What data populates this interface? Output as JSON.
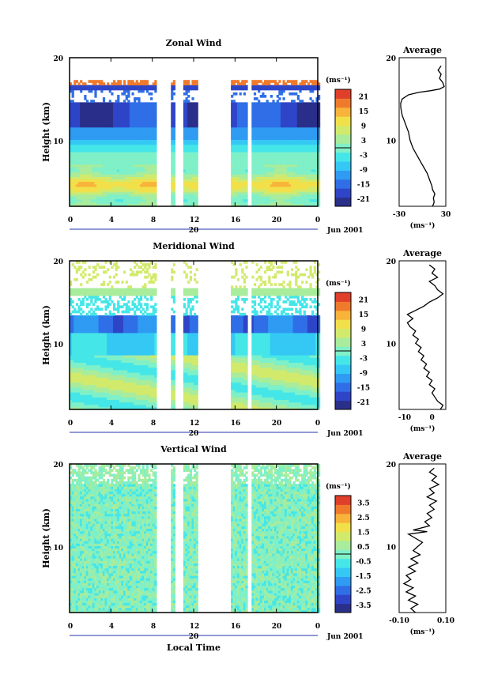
{
  "figure": {
    "xlabel": "Local Time",
    "date_label": "Jun 2001",
    "day_label": "20",
    "unit_label": "(ms⁻¹)",
    "average_title": "Average"
  },
  "chart_data": [
    {
      "type": "heatmap",
      "title": "Zonal Wind",
      "ylabel": "Height (km)",
      "x_ticks": [
        "0",
        "4",
        "8",
        "12",
        "16",
        "20",
        "0"
      ],
      "y_ticks": [
        "20",
        "10"
      ],
      "xlim": [
        0,
        24
      ],
      "ylim": [
        2,
        20
      ],
      "colorbar_ticks": [
        "21",
        "15",
        "9",
        "3",
        "-3",
        "-9",
        "-15",
        "-21"
      ],
      "colorbar_range": [
        -24,
        24
      ],
      "grid": false,
      "profile": {
        "title": "Average",
        "xlabel": "(ms⁻¹)",
        "x_ticks": [
          "-30",
          "30"
        ],
        "y_ticks": [
          "20",
          "10"
        ],
        "xlim": [
          -30,
          30
        ],
        "points": [
          [
            13,
            2
          ],
          [
            15,
            2.5
          ],
          [
            14,
            3
          ],
          [
            16,
            3.5
          ],
          [
            13,
            4
          ],
          [
            12,
            4.5
          ],
          [
            10,
            5
          ],
          [
            8,
            5.5
          ],
          [
            6,
            6
          ],
          [
            3,
            6.5
          ],
          [
            0,
            7
          ],
          [
            -3,
            7.5
          ],
          [
            -6,
            8
          ],
          [
            -9,
            8.5
          ],
          [
            -12,
            9
          ],
          [
            -14,
            9.5
          ],
          [
            -16,
            10
          ],
          [
            -17,
            10.5
          ],
          [
            -18,
            11
          ],
          [
            -20,
            11.5
          ],
          [
            -22,
            12
          ],
          [
            -24,
            12.5
          ],
          [
            -26,
            13
          ],
          [
            -27,
            13.5
          ],
          [
            -28,
            14
          ],
          [
            -28,
            14.5
          ],
          [
            -26,
            15
          ],
          [
            -18,
            15.5
          ],
          [
            -5,
            15.8
          ],
          [
            10,
            16
          ],
          [
            22,
            16.2
          ],
          [
            28,
            16.5
          ],
          [
            26,
            17
          ],
          [
            22,
            17.5
          ],
          [
            24,
            18
          ],
          [
            20,
            18.5
          ],
          [
            24,
            19
          ]
        ]
      }
    },
    {
      "type": "heatmap",
      "title": "Meridional Wind",
      "ylabel": "Height (km)",
      "x_ticks": [
        "0",
        "4",
        "8",
        "12",
        "16",
        "20",
        "0"
      ],
      "y_ticks": [
        "20",
        "10"
      ],
      "xlim": [
        0,
        24
      ],
      "ylim": [
        2,
        20
      ],
      "colorbar_ticks": [
        "21",
        "15",
        "9",
        "3",
        "-3",
        "-9",
        "-15",
        "-21"
      ],
      "colorbar_range": [
        -24,
        24
      ],
      "grid": false,
      "profile": {
        "title": "Average",
        "xlabel": "(ms⁻¹)",
        "x_ticks": [
          "-10",
          "0"
        ],
        "y_ticks": [
          "20",
          "10"
        ],
        "xlim": [
          -12,
          5
        ],
        "points": [
          [
            3,
            2
          ],
          [
            4,
            2.5
          ],
          [
            2,
            3
          ],
          [
            1,
            3.5
          ],
          [
            0,
            4
          ],
          [
            1,
            4.5
          ],
          [
            -1,
            5
          ],
          [
            0,
            5.5
          ],
          [
            -2,
            6
          ],
          [
            -1,
            6.5
          ],
          [
            -3,
            7
          ],
          [
            -2,
            7.5
          ],
          [
            -4,
            8
          ],
          [
            -3,
            8.5
          ],
          [
            -5,
            9
          ],
          [
            -4,
            9.5
          ],
          [
            -6,
            10
          ],
          [
            -5,
            10.5
          ],
          [
            -7,
            11
          ],
          [
            -6,
            11.5
          ],
          [
            -8,
            12
          ],
          [
            -9,
            12.5
          ],
          [
            -7,
            13
          ],
          [
            -9,
            13.5
          ],
          [
            -6,
            14
          ],
          [
            -3,
            14.5
          ],
          [
            -1,
            15
          ],
          [
            2,
            15.5
          ],
          [
            4,
            16
          ],
          [
            2,
            16.5
          ],
          [
            1,
            17
          ],
          [
            -1,
            17.5
          ],
          [
            2,
            18
          ],
          [
            0,
            18.5
          ],
          [
            1,
            19
          ],
          [
            -1,
            19.5
          ]
        ]
      }
    },
    {
      "type": "heatmap",
      "title": "Vertical Wind",
      "ylabel": "Height (km)",
      "x_ticks": [
        "0",
        "4",
        "8",
        "12",
        "16",
        "20",
        "0"
      ],
      "y_ticks": [
        "20",
        "10"
      ],
      "xlim": [
        0,
        24
      ],
      "ylim": [
        2,
        20
      ],
      "colorbar_ticks": [
        "3.5",
        "2.5",
        "1.5",
        "0.5",
        "-0.5",
        "-1.5",
        "-2.5",
        "-3.5"
      ],
      "colorbar_range": [
        -4,
        4
      ],
      "grid": false,
      "profile": {
        "title": "Average",
        "xlabel": "(ms⁻¹)",
        "x_ticks": [
          "-0.10",
          "0.10"
        ],
        "y_ticks": [
          "20",
          "10"
        ],
        "xlim": [
          -0.1,
          0.1
        ],
        "points": [
          [
            -0.03,
            2
          ],
          [
            -0.05,
            2.5
          ],
          [
            -0.02,
            3
          ],
          [
            -0.06,
            3.5
          ],
          [
            -0.03,
            4
          ],
          [
            -0.07,
            4.5
          ],
          [
            -0.04,
            5
          ],
          [
            -0.08,
            5.5
          ],
          [
            -0.05,
            6
          ],
          [
            -0.07,
            6.5
          ],
          [
            -0.03,
            7
          ],
          [
            -0.06,
            7.5
          ],
          [
            -0.02,
            8
          ],
          [
            -0.05,
            8.5
          ],
          [
            -0.01,
            9
          ],
          [
            -0.04,
            9.5
          ],
          [
            -0.02,
            10
          ],
          [
            0.0,
            10.5
          ],
          [
            -0.03,
            11
          ],
          [
            -0.06,
            11.5
          ],
          [
            0.02,
            11.8
          ],
          [
            -0.04,
            12
          ],
          [
            0.03,
            12.5
          ],
          [
            0.01,
            13
          ],
          [
            0.04,
            13.5
          ],
          [
            0.02,
            14
          ],
          [
            0.05,
            14.5
          ],
          [
            0.03,
            15
          ],
          [
            0.06,
            15.5
          ],
          [
            0.02,
            16
          ],
          [
            0.05,
            16.5
          ],
          [
            0.03,
            17
          ],
          [
            0.07,
            17.5
          ],
          [
            0.04,
            18
          ],
          [
            0.06,
            18.5
          ],
          [
            0.03,
            19
          ],
          [
            0.05,
            19.5
          ]
        ]
      }
    }
  ]
}
